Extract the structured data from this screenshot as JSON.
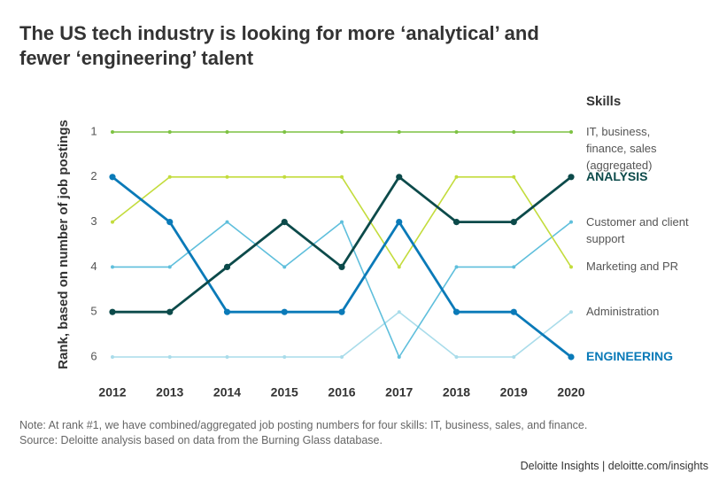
{
  "chart_data": {
    "type": "line",
    "title": "The US tech industry is looking for more ‘analytical’ and fewer ‘engineering’ talent",
    "y_label": "Rank, based on number of job postings",
    "legend_title": "Skills",
    "categories": [
      "2012",
      "2013",
      "2014",
      "2015",
      "2016",
      "2017",
      "2018",
      "2019",
      "2020"
    ],
    "ylim": [
      1,
      6
    ],
    "y_inverted": true,
    "yticks": [
      1,
      2,
      3,
      4,
      5,
      6
    ],
    "series": [
      {
        "name": "IT, business, finance, sales (aggregated)",
        "color": "#7dc242",
        "emphasis": false,
        "values": [
          1,
          1,
          1,
          1,
          1,
          1,
          1,
          1,
          1
        ]
      },
      {
        "name": "Administration",
        "color": "#a9dcea",
        "emphasis": false,
        "values": [
          6,
          6,
          6,
          6,
          6,
          5,
          6,
          6,
          5
        ]
      },
      {
        "name": "Customer and client support",
        "color": "#5fbfdc",
        "emphasis": false,
        "values": [
          4,
          4,
          3,
          4,
          3,
          6,
          4,
          4,
          3
        ]
      },
      {
        "name": "Marketing and PR",
        "color": "#c3dc3c",
        "emphasis": false,
        "values": [
          3,
          2,
          2,
          2,
          2,
          4,
          2,
          2,
          4
        ]
      },
      {
        "name": "ENGINEERING",
        "color": "#0a7ab8",
        "emphasis": true,
        "values": [
          2,
          3,
          5,
          5,
          5,
          3,
          5,
          5,
          6
        ]
      },
      {
        "name": "ANALYSIS",
        "color": "#0c4a4a",
        "emphasis": true,
        "values": [
          5,
          5,
          4,
          3,
          4,
          2,
          3,
          3,
          2
        ]
      }
    ],
    "note": "Note: At rank #1, we have combined/aggregated job posting numbers for four skills: IT, business, sales, and finance.",
    "source": "Source: Deloitte analysis based on data from the Burning Glass database.",
    "footer": "Deloitte Insights | deloitte.com/insights"
  }
}
